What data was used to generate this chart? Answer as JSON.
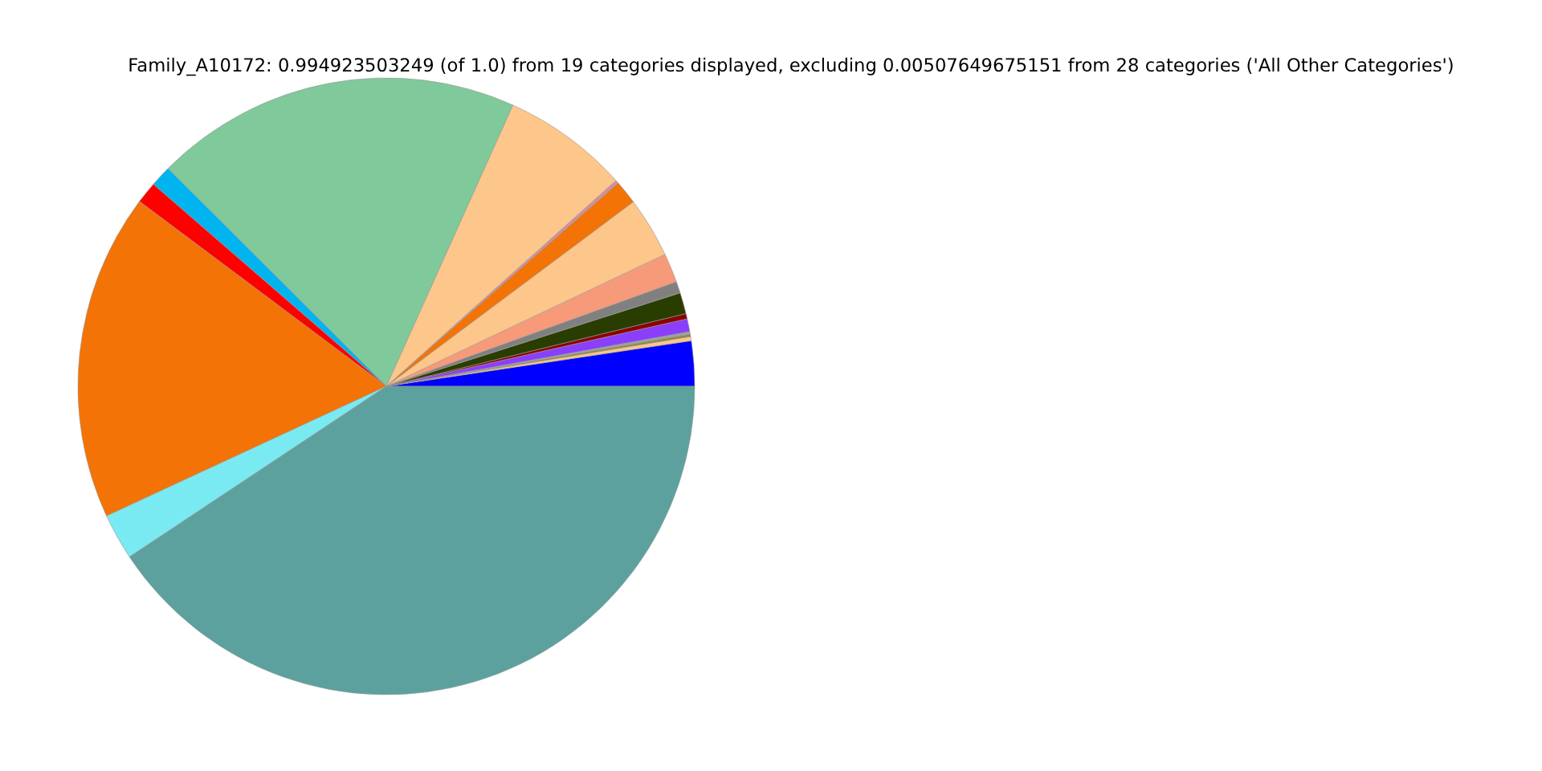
{
  "chart_data": {
    "type": "pie",
    "title": "Family_A10172: 0.994923503249 (of 1.0) from 19 categories displayed, excluding 0.00507649675151 from 28 categories ('All Other Categories')",
    "categories": [
      null,
      null,
      null,
      null,
      null,
      null,
      null,
      null,
      null,
      null,
      null,
      null,
      null,
      null,
      null,
      null,
      null,
      null,
      null
    ],
    "values": [
      2.36,
      0.22,
      0.13,
      0.13,
      0.67,
      0.28,
      1.11,
      0.61,
      1.53,
      3.17,
      1.25,
      0.17,
      6.64,
      19.25,
      1.11,
      1.14,
      17.14,
      2.42,
      40.67
    ],
    "colors": [
      "#0000ff",
      "#fdc68a",
      "#8b8b3a",
      "#a0a0a0",
      "#8a3ffc",
      "#8b0000",
      "#2a3d00",
      "#808080",
      "#f79a7a",
      "#fdc68a",
      "#f37306",
      "#d08fa0",
      "#fdc68a",
      "#80c99b",
      "#00b4f0",
      "#ff0000",
      "#f37306",
      "#7aeaf2",
      "#5ca19d"
    ],
    "legend": false
  }
}
